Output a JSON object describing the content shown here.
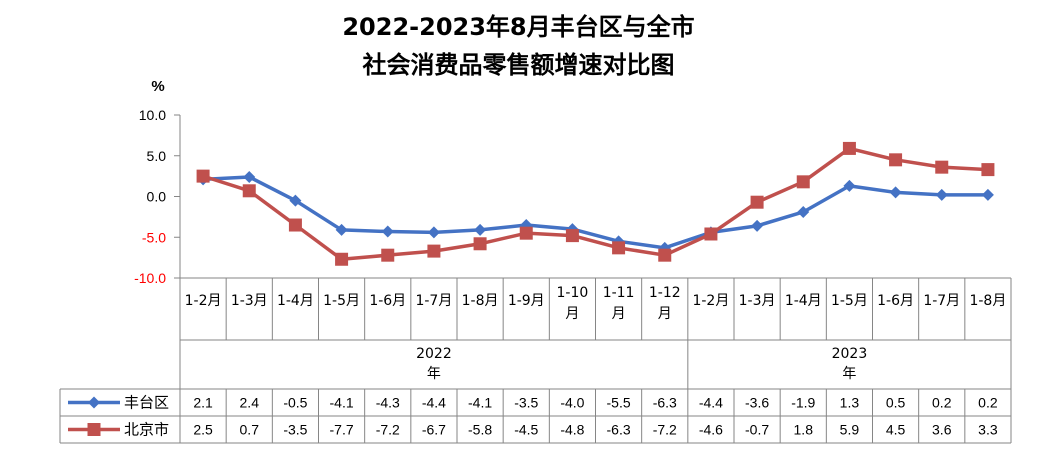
{
  "chart_data": {
    "type": "line",
    "title_line1": "2022-2023年8月丰台区与全市",
    "title_line2": "社会消费品零售额增速对比图",
    "ylabel": "%",
    "ylim": [
      -10,
      10
    ],
    "yticks": [
      "10.0",
      "5.0",
      "0.0",
      "-5.0",
      "-10.0"
    ],
    "categories": [
      [
        "1-2月"
      ],
      [
        "1-3月"
      ],
      [
        "1-4月"
      ],
      [
        "1-5月"
      ],
      [
        "1-6月"
      ],
      [
        "1-7月"
      ],
      [
        "1-8月"
      ],
      [
        "1-9月"
      ],
      [
        "1-10",
        "月"
      ],
      [
        "1-11",
        "月"
      ],
      [
        "1-12",
        "月"
      ],
      [
        "1-2月"
      ],
      [
        "1-3月"
      ],
      [
        "1-4月"
      ],
      [
        "1-5月"
      ],
      [
        "1-6月"
      ],
      [
        "1-7月"
      ],
      [
        "1-8月"
      ]
    ],
    "groups": [
      {
        "year": "2022",
        "suffix": "年",
        "start": 0,
        "count": 11
      },
      {
        "year": "2023",
        "suffix": "年",
        "start": 11,
        "count": 7
      }
    ],
    "series": [
      {
        "name": "丰台区",
        "color": "#4472c4",
        "marker": "diamond",
        "values": [
          2.1,
          2.4,
          -0.5,
          -4.1,
          -4.3,
          -4.4,
          -4.1,
          -3.5,
          -4.0,
          -5.5,
          -6.3,
          -4.4,
          -3.6,
          -1.9,
          1.3,
          0.5,
          0.2,
          0.2
        ],
        "labels": [
          "2.1",
          "2.4",
          "-0.5",
          "-4.1",
          "-4.3",
          "-4.4",
          "-4.1",
          "-3.5",
          "-4.0",
          "-5.5",
          "-6.3",
          "-4.4",
          "-3.6",
          "-1.9",
          "1.3",
          "0.5",
          "0.2",
          "0.2"
        ]
      },
      {
        "name": "北京市",
        "color": "#c0504d",
        "marker": "square",
        "values": [
          2.5,
          0.7,
          -3.5,
          -7.7,
          -7.2,
          -6.7,
          -5.8,
          -4.5,
          -4.8,
          -6.3,
          -7.2,
          -4.6,
          -0.7,
          1.8,
          5.9,
          4.5,
          3.6,
          3.3
        ],
        "labels": [
          "2.5",
          "0.7",
          "-3.5",
          "-7.7",
          "-7.2",
          "-6.7",
          "-5.8",
          "-4.5",
          "-4.8",
          "-6.3",
          "-7.2",
          "-4.6",
          "-0.7",
          "1.8",
          "5.9",
          "4.5",
          "3.6",
          "3.3"
        ]
      }
    ],
    "grid": false,
    "legend": "data-table"
  }
}
